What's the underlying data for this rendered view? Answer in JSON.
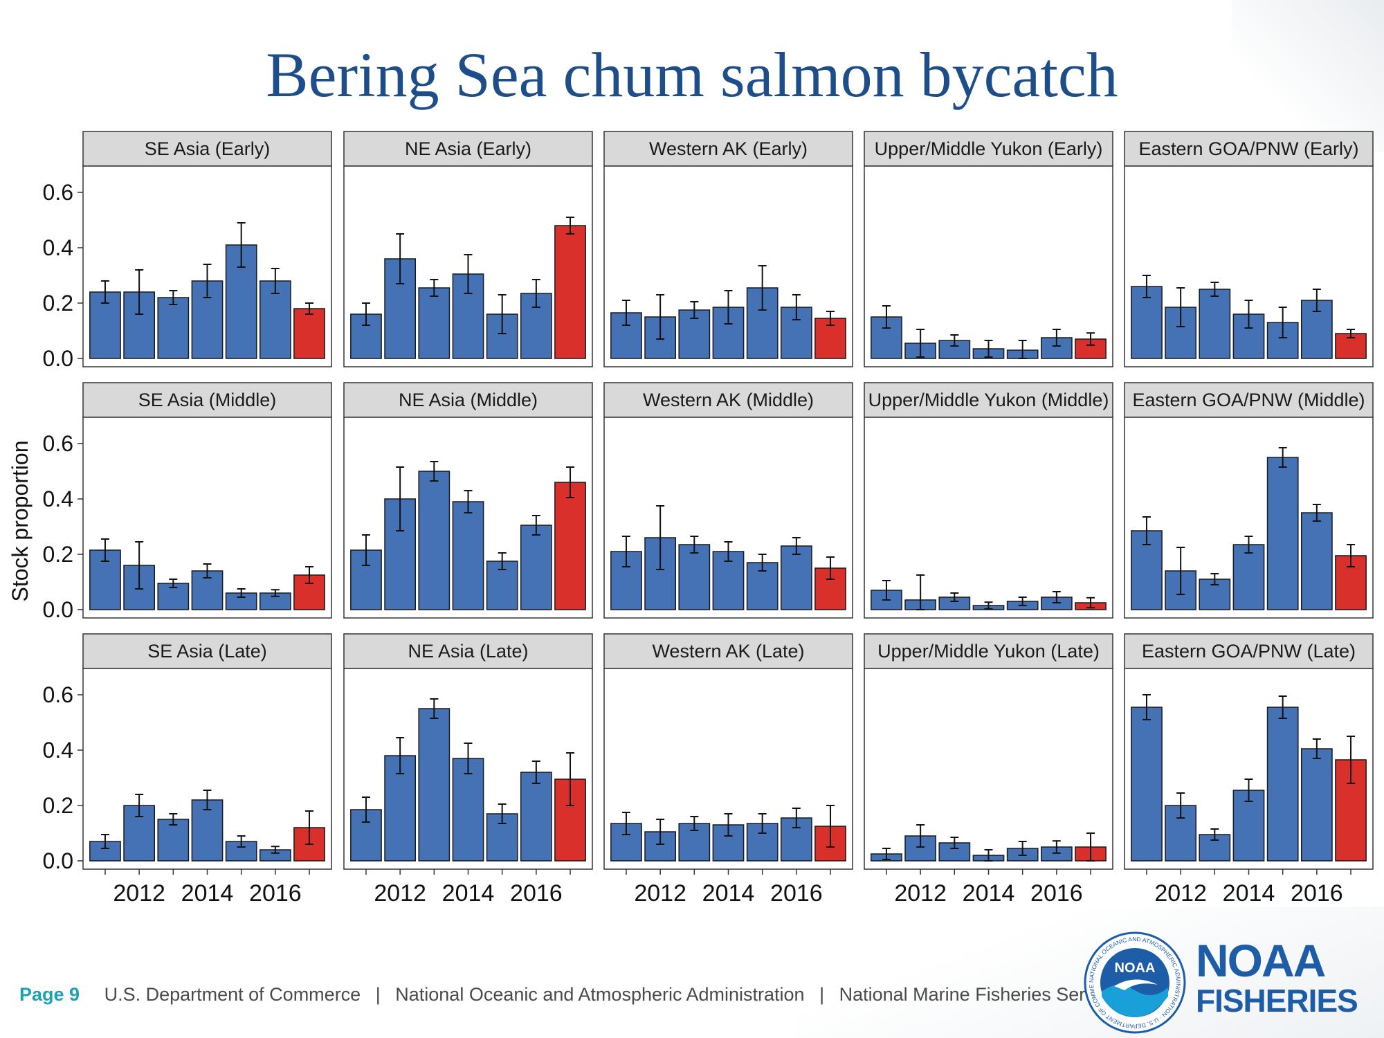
{
  "title": "Bering Sea chum salmon bycatch",
  "footer": {
    "page": "Page 9",
    "dept": "U.S. Department of Commerce",
    "agency": "National Oceanic and Atmospheric Administration",
    "service": "National Marine Fisheries Service",
    "separator": "|"
  },
  "logo": {
    "badge_text": "NOAA",
    "ring_text": "NATIONAL OCEANIC AND ATMOSPHERIC ADMINISTRATION · U.S. DEPARTMENT OF COMMERCE",
    "brand_line1": "NOAA",
    "brand_line2": "FISHERIES"
  },
  "colors": {
    "bar": "#4472b4",
    "highlight": "#d9302b",
    "strip": "#d9d9d9",
    "title": "#1d4e8a"
  },
  "chart_data": {
    "type": "bar",
    "ylabel": "Stock proportion",
    "ylim": [
      0,
      0.6
    ],
    "yticks": [
      "0.0",
      "0.2",
      "0.4",
      "0.6"
    ],
    "years": [
      2011,
      2012,
      2013,
      2014,
      2015,
      2016,
      2017
    ],
    "xtick_labels": [
      "2012",
      "2014",
      "2016"
    ],
    "xtick_years": [
      2012,
      2014,
      2016
    ],
    "highlight_year": 2017,
    "panels": [
      {
        "label": "SE Asia (Early)",
        "values": [
          0.24,
          0.24,
          0.22,
          0.28,
          0.41,
          0.28,
          0.18
        ],
        "err": [
          0.04,
          0.08,
          0.025,
          0.06,
          0.08,
          0.045,
          0.02
        ]
      },
      {
        "label": "NE Asia (Early)",
        "values": [
          0.16,
          0.36,
          0.255,
          0.305,
          0.16,
          0.235,
          0.48
        ],
        "err": [
          0.04,
          0.09,
          0.03,
          0.07,
          0.07,
          0.05,
          0.03
        ]
      },
      {
        "label": "Western AK (Early)",
        "values": [
          0.165,
          0.15,
          0.175,
          0.185,
          0.255,
          0.185,
          0.145
        ],
        "err": [
          0.045,
          0.08,
          0.03,
          0.06,
          0.08,
          0.045,
          0.025
        ]
      },
      {
        "label": "Upper/Middle Yukon (Early)",
        "values": [
          0.15,
          0.055,
          0.065,
          0.035,
          0.03,
          0.075,
          0.07
        ],
        "err": [
          0.04,
          0.05,
          0.02,
          0.03,
          0.035,
          0.03,
          0.022
        ]
      },
      {
        "label": "Eastern GOA/PNW (Early)",
        "values": [
          0.26,
          0.185,
          0.25,
          0.16,
          0.13,
          0.21,
          0.09
        ],
        "err": [
          0.04,
          0.07,
          0.025,
          0.05,
          0.055,
          0.04,
          0.015
        ]
      },
      {
        "label": "SE Asia (Middle)",
        "values": [
          0.215,
          0.16,
          0.095,
          0.14,
          0.06,
          0.06,
          0.125
        ],
        "err": [
          0.04,
          0.085,
          0.015,
          0.025,
          0.015,
          0.012,
          0.03
        ]
      },
      {
        "label": "NE Asia (Middle)",
        "values": [
          0.215,
          0.4,
          0.5,
          0.39,
          0.175,
          0.305,
          0.46
        ],
        "err": [
          0.055,
          0.115,
          0.035,
          0.04,
          0.03,
          0.035,
          0.055
        ]
      },
      {
        "label": "Western AK (Middle)",
        "values": [
          0.21,
          0.26,
          0.235,
          0.21,
          0.17,
          0.23,
          0.15
        ],
        "err": [
          0.055,
          0.115,
          0.03,
          0.035,
          0.03,
          0.03,
          0.04
        ]
      },
      {
        "label": "Upper/Middle Yukon (Middle)",
        "values": [
          0.07,
          0.035,
          0.045,
          0.015,
          0.03,
          0.045,
          0.025
        ],
        "err": [
          0.035,
          0.09,
          0.015,
          0.012,
          0.015,
          0.02,
          0.018
        ]
      },
      {
        "label": "Eastern GOA/PNW (Middle)",
        "values": [
          0.285,
          0.14,
          0.11,
          0.235,
          0.55,
          0.35,
          0.195
        ],
        "err": [
          0.05,
          0.085,
          0.02,
          0.03,
          0.035,
          0.03,
          0.04
        ]
      },
      {
        "label": "SE Asia (Late)",
        "values": [
          0.07,
          0.2,
          0.15,
          0.22,
          0.07,
          0.04,
          0.12
        ],
        "err": [
          0.025,
          0.04,
          0.02,
          0.035,
          0.02,
          0.012,
          0.06
        ]
      },
      {
        "label": "NE Asia (Late)",
        "values": [
          0.185,
          0.38,
          0.55,
          0.37,
          0.17,
          0.32,
          0.295
        ],
        "err": [
          0.045,
          0.065,
          0.035,
          0.055,
          0.035,
          0.04,
          0.095
        ]
      },
      {
        "label": "Western AK (Late)",
        "values": [
          0.135,
          0.105,
          0.135,
          0.13,
          0.135,
          0.155,
          0.125
        ],
        "err": [
          0.04,
          0.045,
          0.025,
          0.04,
          0.035,
          0.035,
          0.075
        ]
      },
      {
        "label": "Upper/Middle Yukon (Late)",
        "values": [
          0.025,
          0.09,
          0.065,
          0.02,
          0.045,
          0.05,
          0.05
        ],
        "err": [
          0.02,
          0.04,
          0.02,
          0.02,
          0.025,
          0.022,
          0.05
        ]
      },
      {
        "label": "Eastern GOA/PNW (Late)",
        "values": [
          0.555,
          0.2,
          0.095,
          0.255,
          0.555,
          0.405,
          0.365
        ],
        "err": [
          0.045,
          0.045,
          0.02,
          0.04,
          0.04,
          0.035,
          0.085
        ]
      }
    ]
  }
}
